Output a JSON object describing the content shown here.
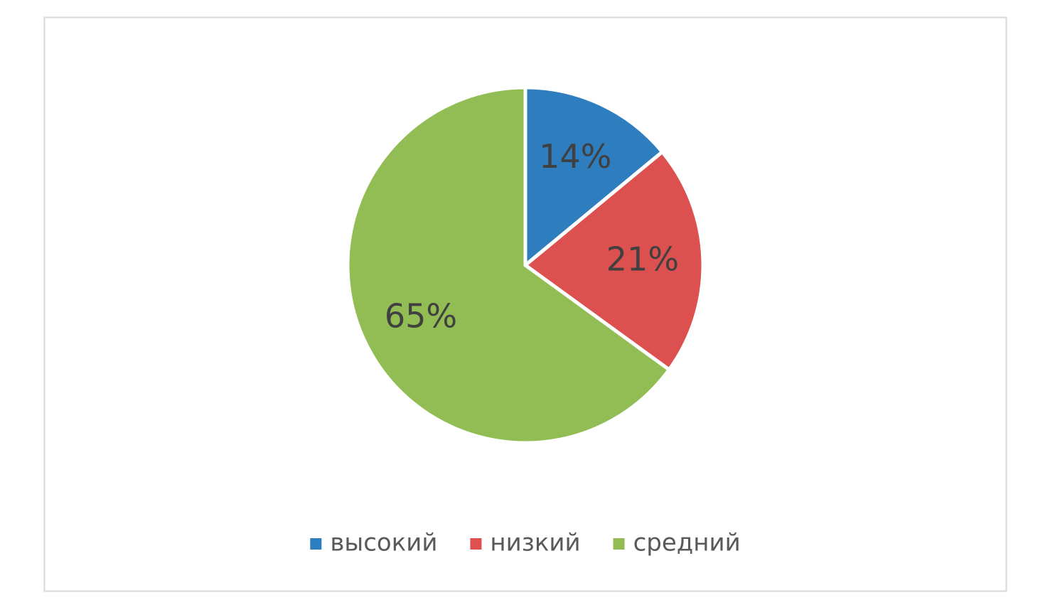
{
  "chart_data": {
    "type": "pie",
    "categories": [
      "высокий",
      "низкий",
      "средний"
    ],
    "values": [
      14,
      21,
      65
    ],
    "value_labels": [
      "14%",
      "21%",
      "65%"
    ],
    "colors": [
      "#2e7ebf",
      "#dc504f",
      "#92bd55"
    ],
    "legend": "bottom"
  }
}
